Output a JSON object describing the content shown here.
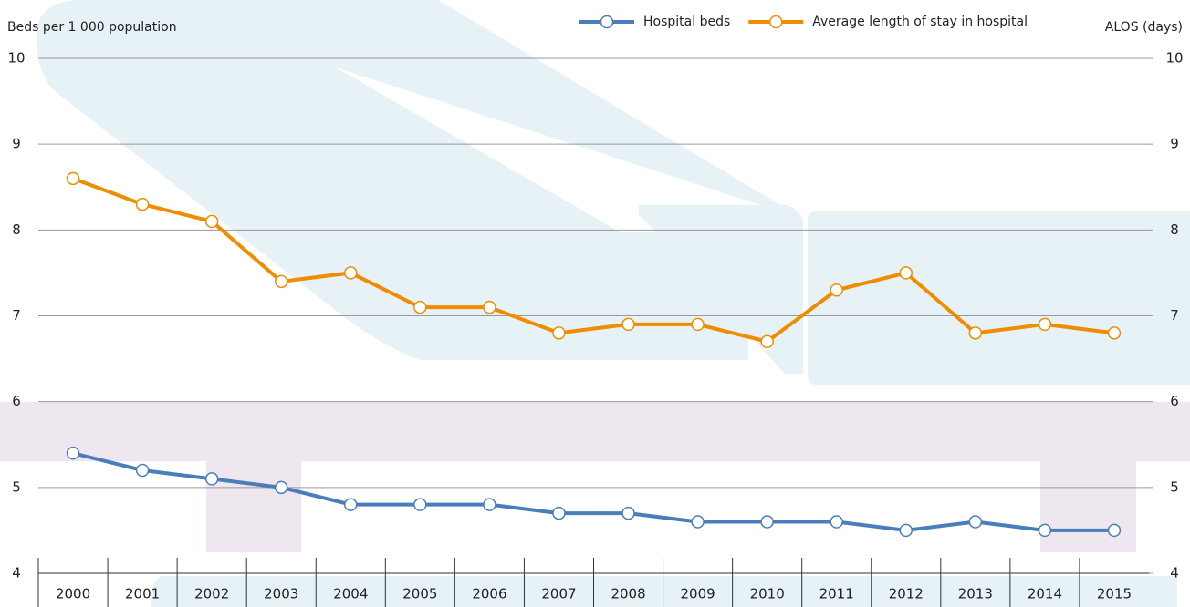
{
  "chart_data": {
    "type": "line",
    "y_label": "Beds per 1 000 population",
    "y2_label": "ALOS (days)",
    "categories": [
      "2000",
      "2001",
      "2002",
      "2003",
      "2004",
      "2005",
      "2006",
      "2007",
      "2008",
      "2009",
      "2010",
      "2011",
      "2012",
      "2013",
      "2014",
      "2015"
    ],
    "series": [
      {
        "name": "Hospital beds",
        "color": "#4a7ebb",
        "values": [
          5.4,
          5.2,
          5.1,
          5.0,
          4.8,
          4.8,
          4.8,
          4.7,
          4.7,
          4.6,
          4.6,
          4.6,
          4.5,
          4.6,
          4.5,
          4.5
        ]
      },
      {
        "name": "Average length of stay in hospital",
        "color": "#f08c00",
        "axis": "y2",
        "values": [
          8.6,
          8.3,
          8.1,
          7.4,
          7.5,
          7.1,
          7.1,
          6.8,
          6.9,
          6.9,
          6.7,
          7.3,
          7.5,
          6.8,
          6.9,
          6.8
        ]
      }
    ],
    "ylim": [
      4,
      10
    ],
    "yticks": [
      4,
      5,
      6,
      7,
      8,
      9,
      10
    ],
    "y2lim": [
      4,
      10
    ],
    "y2ticks": [
      4,
      5,
      6,
      7,
      8,
      9,
      10
    ],
    "grid": true
  }
}
